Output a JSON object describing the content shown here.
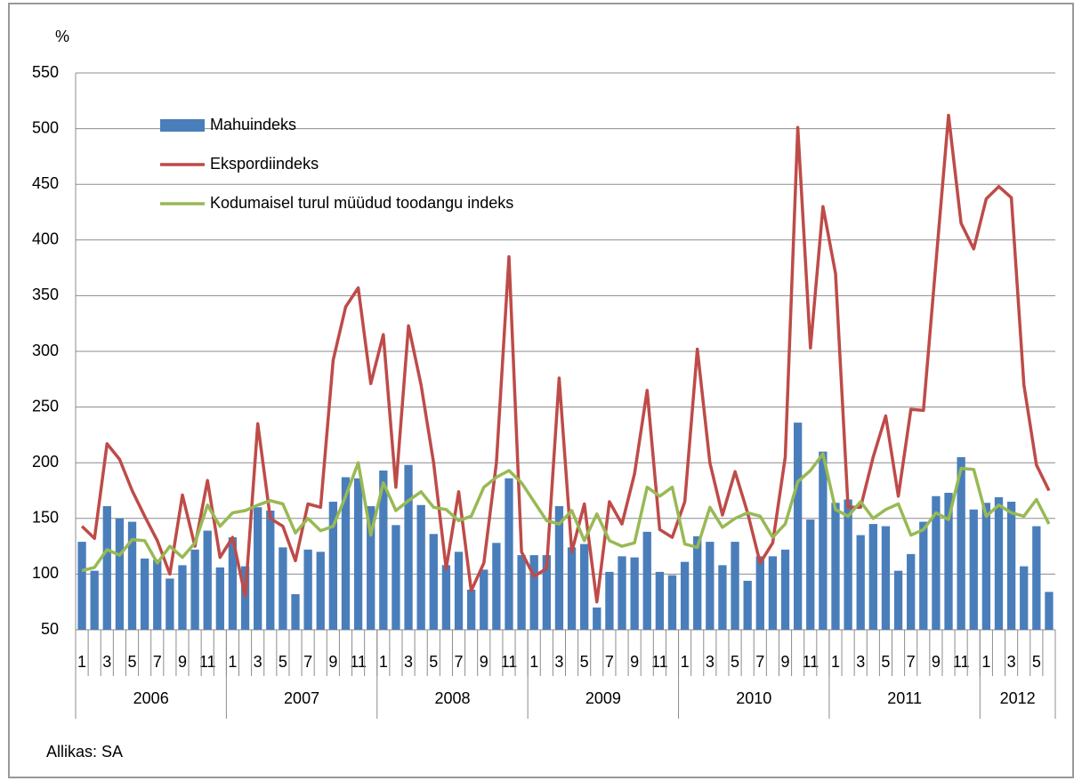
{
  "chart_data": {
    "type": "bar_line",
    "y_unit": "%",
    "source": "Allikas: SA",
    "categories": [
      "1",
      null,
      "3",
      null,
      "5",
      null,
      "7",
      null,
      "9",
      null,
      "11",
      null,
      "1",
      null,
      "3",
      null,
      "5",
      null,
      "7",
      null,
      "9",
      null,
      "11",
      null,
      "1",
      null,
      "3",
      null,
      "5",
      null,
      "7",
      null,
      "9",
      null,
      "11",
      null,
      "1",
      null,
      "3",
      null,
      "5",
      null,
      "7",
      null,
      "9",
      null,
      "11",
      null,
      "1",
      null,
      "3",
      null,
      "5",
      null,
      "7",
      null,
      "9",
      null,
      "11",
      null,
      "1",
      null,
      "3",
      null,
      "5",
      null,
      "7",
      null,
      "9",
      null,
      "11",
      null,
      "1",
      null,
      "3",
      null,
      "5",
      null
    ],
    "years": [
      "2006",
      "2007",
      "2008",
      "2009",
      "2010",
      "2011",
      "2012"
    ],
    "series": [
      {
        "name": "Mahuindeks",
        "kind": "bar",
        "color": "#4a7ebb",
        "values": [
          129,
          103,
          161,
          150,
          147,
          114,
          113,
          96,
          108,
          122,
          139,
          106,
          133,
          107,
          160,
          157,
          124,
          82,
          122,
          120,
          165,
          187,
          186,
          161,
          193,
          144,
          198,
          162,
          136,
          108,
          120,
          86,
          104,
          128,
          186,
          117,
          117,
          117,
          161,
          124,
          127,
          70,
          102,
          116,
          115,
          138,
          102,
          99,
          111,
          134,
          129,
          108,
          129,
          94,
          116,
          116,
          122,
          236,
          149,
          210,
          164,
          167,
          135,
          145,
          143,
          103,
          118,
          147,
          170,
          173,
          205,
          158,
          164,
          169,
          165,
          107,
          143,
          84
        ]
      },
      {
        "name": "Ekspordiindeks",
        "kind": "line",
        "color": "#be4b48",
        "values": [
          143,
          132,
          217,
          203,
          175,
          152,
          130,
          100,
          171,
          125,
          184,
          115,
          133,
          80,
          235,
          150,
          143,
          112,
          163,
          160,
          292,
          340,
          357,
          271,
          315,
          178,
          323,
          270,
          200,
          105,
          174,
          85,
          110,
          200,
          385,
          120,
          98,
          105,
          276,
          120,
          163,
          75,
          165,
          145,
          190,
          265,
          140,
          133,
          165,
          302,
          200,
          153,
          192,
          155,
          110,
          128,
          205,
          501,
          303,
          430,
          370,
          160,
          160,
          205,
          242,
          170,
          248,
          247,
          380,
          512,
          415,
          392,
          437,
          448,
          438,
          270,
          198,
          175
        ]
      },
      {
        "name": "Kodumaisel turul müüdud toodangu indeks",
        "kind": "line",
        "color": "#98b954",
        "values": [
          103,
          106,
          122,
          117,
          131,
          130,
          110,
          125,
          115,
          128,
          162,
          143,
          155,
          157,
          162,
          166,
          163,
          137,
          150,
          139,
          143,
          170,
          200,
          135,
          182,
          157,
          166,
          174,
          160,
          158,
          148,
          152,
          178,
          187,
          193,
          182,
          165,
          148,
          145,
          157,
          130,
          154,
          130,
          125,
          128,
          178,
          170,
          178,
          127,
          124,
          160,
          142,
          150,
          155,
          152,
          133,
          145,
          183,
          193,
          208,
          158,
          152,
          165,
          150,
          158,
          163,
          135,
          140,
          155,
          149,
          195,
          194,
          152,
          162,
          155,
          152,
          167,
          145
        ]
      }
    ],
    "ylim": [
      50,
      550
    ],
    "yticks": [
      50,
      100,
      150,
      200,
      250,
      300,
      350,
      400,
      450,
      500,
      550
    ],
    "grid": true,
    "legend": "top-left"
  }
}
